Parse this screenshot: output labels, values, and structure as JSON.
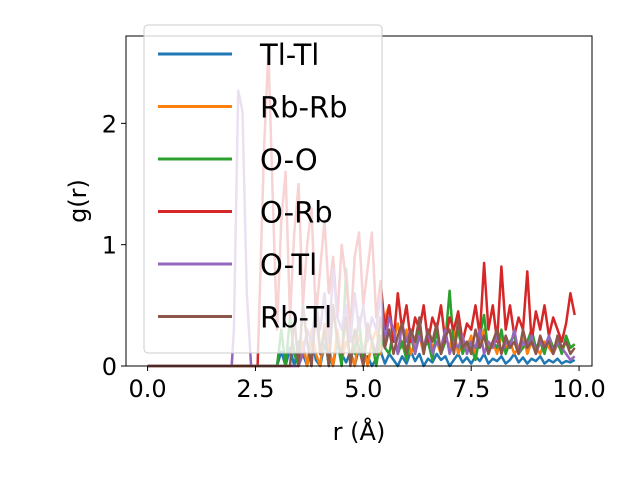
{
  "chart_data": {
    "type": "line",
    "xlabel": "r (Å)",
    "ylabel": "g(r)",
    "xlim": [
      -0.5,
      10.3
    ],
    "ylim": [
      0,
      2.72
    ],
    "xticks": [
      0.0,
      2.5,
      5.0,
      7.5,
      10.0
    ],
    "xtick_labels": [
      "0.0",
      "2.5",
      "5.0",
      "7.5",
      "10.0"
    ],
    "yticks": [
      0,
      1,
      2
    ],
    "ytick_labels": [
      "0",
      "1",
      "2"
    ],
    "grid": false,
    "legend_position": "top-left",
    "legend": [
      "Tl-Tl",
      "Rb-Rb",
      "O-O",
      "O-Rb",
      "O-Tl",
      "Rb-Tl"
    ],
    "series": [
      {
        "name": "Tl-Tl",
        "color": "#1f77b4",
        "x": [
          0,
          2.0,
          3.0,
          3.1,
          3.2,
          3.3,
          3.4,
          3.5,
          3.6,
          3.7,
          3.8,
          3.9,
          4.0,
          4.1,
          4.2,
          4.3,
          4.4,
          4.5,
          4.6,
          4.7,
          4.8,
          4.9,
          5.0,
          5.1,
          5.2,
          5.3,
          5.4,
          5.5,
          5.6,
          5.7,
          5.8,
          5.9,
          6.0,
          6.1,
          6.2,
          6.3,
          6.4,
          6.5,
          6.6,
          6.7,
          6.8,
          6.9,
          7.0,
          7.1,
          7.2,
          7.3,
          7.4,
          7.5,
          7.6,
          7.7,
          7.8,
          7.9,
          8.0,
          8.1,
          8.2,
          8.3,
          8.4,
          8.5,
          8.6,
          8.7,
          8.8,
          8.9,
          9.0,
          9.1,
          9.2,
          9.3,
          9.4,
          9.5,
          9.6,
          9.7,
          9.8,
          9.9
        ],
        "y": [
          0,
          0,
          0,
          0.12,
          0,
          0.15,
          0,
          0.2,
          0.1,
          0,
          0.25,
          0.05,
          0,
          0.18,
          0.08,
          0,
          0.22,
          0.1,
          0.03,
          0.12,
          0,
          0.15,
          0.05,
          0.08,
          0,
          0.06,
          0.12,
          0.02,
          0.1,
          0.05,
          0,
          0.08,
          0.02,
          0.12,
          0.04,
          0.1,
          0,
          0.06,
          0.03,
          0.1,
          0.05,
          0.08,
          0,
          0.05,
          0.1,
          0.03,
          0.07,
          0.02,
          0.08,
          0.04,
          0.1,
          0.02,
          0.06,
          0.04,
          0.08,
          0.02,
          0.05,
          0.1,
          0.03,
          0.07,
          0.02,
          0.06,
          0.04,
          0.08,
          0.02,
          0.05,
          0.03,
          0.06,
          0.02,
          0.04,
          0.03,
          0.05
        ]
      },
      {
        "name": "Rb-Rb",
        "color": "#ff7f0e",
        "x": [
          0,
          3.5,
          3.6,
          3.7,
          3.8,
          3.9,
          4.0,
          4.1,
          4.2,
          4.3,
          4.4,
          4.5,
          4.6,
          4.7,
          4.8,
          4.9,
          5.0,
          5.1,
          5.2,
          5.3,
          5.4,
          5.5,
          5.6,
          5.7,
          5.8,
          5.9,
          6.0,
          6.1,
          6.2,
          6.3,
          6.4,
          6.5,
          6.6,
          6.7,
          6.8,
          6.9,
          7.0,
          7.1,
          7.2,
          7.3,
          7.4,
          7.5,
          7.6,
          7.7,
          7.8,
          7.9,
          8.0,
          8.1,
          8.2,
          8.3,
          8.4,
          8.5,
          8.6,
          8.7,
          8.8,
          8.9,
          9.0,
          9.1,
          9.2,
          9.3,
          9.4,
          9.5,
          9.6,
          9.7,
          9.8,
          9.9
        ],
        "y": [
          0,
          0,
          0.2,
          0,
          0.3,
          0.1,
          0,
          0.35,
          0.15,
          0,
          0.3,
          0.05,
          0.2,
          0.1,
          0,
          0.25,
          0.15,
          0,
          0.2,
          0.3,
          0.1,
          0.4,
          0.5,
          0.2,
          0.35,
          0.15,
          0.3,
          0.1,
          0.2,
          0.25,
          0.1,
          0.3,
          0.15,
          0.2,
          0.1,
          0.25,
          0.15,
          0.3,
          0.1,
          0.2,
          0.15,
          0.25,
          0.1,
          0.2,
          0.3,
          0.15,
          0.2,
          0.1,
          0.25,
          0.15,
          0.2,
          0.1,
          0.15,
          0.25,
          0.1,
          0.2,
          0.15,
          0.1,
          0.2,
          0.15,
          0.1,
          0.18,
          0.12,
          0.2,
          0.15,
          0.18
        ]
      },
      {
        "name": "O-O",
        "color": "#2ca02c",
        "x": [
          0,
          3.0,
          3.1,
          3.2,
          3.3,
          3.4,
          3.5,
          3.6,
          3.7,
          3.8,
          3.9,
          4.0,
          4.1,
          4.2,
          4.3,
          4.4,
          4.5,
          4.6,
          4.7,
          4.8,
          4.9,
          5.0,
          5.1,
          5.2,
          5.3,
          5.4,
          5.5,
          5.6,
          5.7,
          5.8,
          5.9,
          6.0,
          6.1,
          6.2,
          6.3,
          6.4,
          6.5,
          6.6,
          6.7,
          6.8,
          6.9,
          7.0,
          7.1,
          7.2,
          7.3,
          7.4,
          7.5,
          7.6,
          7.7,
          7.8,
          7.9,
          8.0,
          8.1,
          8.2,
          8.3,
          8.4,
          8.5,
          8.6,
          8.7,
          8.8,
          8.9,
          9.0,
          9.1,
          9.2,
          9.3,
          9.4,
          9.5,
          9.6,
          9.7,
          9.8,
          9.9
        ],
        "y": [
          0,
          0,
          0.3,
          0,
          0.4,
          0.1,
          0,
          0.5,
          0.2,
          0,
          0.6,
          0.1,
          0.3,
          0,
          0.5,
          0.2,
          0,
          0.8,
          0.3,
          0.1,
          0.4,
          0,
          0.3,
          0.2,
          0,
          0.25,
          0.15,
          0.1,
          0.3,
          0.1,
          0.2,
          0.05,
          0.25,
          0.1,
          0.3,
          0.15,
          0.2,
          0.05,
          0.3,
          0.1,
          0.2,
          0.62,
          0.15,
          0.3,
          0.1,
          0.2,
          0.15,
          0.05,
          0.25,
          0.42,
          0.1,
          0.2,
          0.15,
          0.3,
          0.1,
          0.2,
          0.25,
          0.1,
          0.15,
          0.2,
          0.3,
          0.15,
          0.2,
          0.1,
          0.25,
          0.15,
          0.2,
          0.1,
          0.25,
          0.15,
          0.18
        ]
      },
      {
        "name": "O-Rb",
        "color": "#d62728",
        "x": [
          0,
          2.55,
          2.6,
          2.7,
          2.8,
          2.9,
          3.0,
          3.1,
          3.2,
          3.3,
          3.4,
          3.5,
          3.6,
          3.7,
          3.8,
          3.9,
          4.0,
          4.1,
          4.2,
          4.3,
          4.4,
          4.5,
          4.6,
          4.7,
          4.8,
          4.9,
          5.0,
          5.1,
          5.2,
          5.3,
          5.4,
          5.5,
          5.6,
          5.7,
          5.8,
          5.9,
          6.0,
          6.1,
          6.2,
          6.3,
          6.4,
          6.5,
          6.6,
          6.7,
          6.8,
          6.9,
          7.0,
          7.1,
          7.2,
          7.3,
          7.4,
          7.5,
          7.6,
          7.7,
          7.8,
          7.9,
          8.0,
          8.1,
          8.2,
          8.3,
          8.4,
          8.5,
          8.6,
          8.7,
          8.8,
          8.9,
          9.0,
          9.1,
          9.2,
          9.3,
          9.4,
          9.5,
          9.6,
          9.7,
          9.8,
          9.9
        ],
        "y": [
          0,
          0,
          0.6,
          1.8,
          2.6,
          1.4,
          0.3,
          1.2,
          1.6,
          0.4,
          1.1,
          1.5,
          0.5,
          1.0,
          1.3,
          0.4,
          0.8,
          1.2,
          0.6,
          0.9,
          0.4,
          1.0,
          0.7,
          0.3,
          0.9,
          1.1,
          0.5,
          0.8,
          1.1,
          0.4,
          0.7,
          0.3,
          0.5,
          0.2,
          0.6,
          0.3,
          0.5,
          0.2,
          0.4,
          0.3,
          0.5,
          0.2,
          0.4,
          0.3,
          0.5,
          0.2,
          0.4,
          0.3,
          0.45,
          0.2,
          0.35,
          0.3,
          0.5,
          0.25,
          0.85,
          0.3,
          0.5,
          0.2,
          0.82,
          0.3,
          0.5,
          0.25,
          0.4,
          0.3,
          0.78,
          0.2,
          0.45,
          0.3,
          0.5,
          0.25,
          0.4,
          0.3,
          0.2,
          0.35,
          0.6,
          0.42
        ]
      },
      {
        "name": "O-Tl",
        "color": "#9467bd",
        "x": [
          0,
          1.95,
          2.0,
          2.1,
          2.2,
          2.3,
          2.4,
          2.5,
          2.6,
          2.7,
          2.8,
          2.9,
          3.0,
          3.1,
          3.2,
          3.3,
          3.4,
          3.5,
          3.6,
          3.7,
          3.8,
          3.9,
          4.0,
          4.1,
          4.2,
          4.3,
          4.4,
          4.5,
          4.6,
          4.7,
          4.8,
          4.9,
          5.0,
          5.1,
          5.2,
          5.3,
          5.4,
          5.5,
          5.6,
          5.7,
          5.8,
          5.9,
          6.0,
          6.1,
          6.2,
          6.3,
          6.4,
          6.5,
          6.6,
          6.7,
          6.8,
          6.9,
          7.0,
          7.1,
          7.2,
          7.3,
          7.4,
          7.5,
          7.6,
          7.7,
          7.8,
          7.9,
          8.0,
          8.1,
          8.2,
          8.3,
          8.4,
          8.5,
          8.6,
          8.7,
          8.8,
          8.9,
          9.0,
          9.1,
          9.2,
          9.3,
          9.4,
          9.5,
          9.6,
          9.7,
          9.8,
          9.9
        ],
        "y": [
          0,
          0,
          0.3,
          2.27,
          2.1,
          0.6,
          0,
          0,
          0,
          0,
          0,
          0,
          0,
          0,
          0,
          0,
          0,
          0,
          0.1,
          0.3,
          0.2,
          0.5,
          0.3,
          0.6,
          0.2,
          0.8,
          0.4,
          0.3,
          0.5,
          0.2,
          0.6,
          0.3,
          0.5,
          0.2,
          0.4,
          0.3,
          0.6,
          0.2,
          0.4,
          0.3,
          0.1,
          0.35,
          0.2,
          0.3,
          0.1,
          0.25,
          0.15,
          0.3,
          0.1,
          0.2,
          0.15,
          0.3,
          0.1,
          0.2,
          0.15,
          0.25,
          0.1,
          0.2,
          0.15,
          0.3,
          0.1,
          0.2,
          0.15,
          0.25,
          0.1,
          0.2,
          0.15,
          0.3,
          0.1,
          0.2,
          0.15,
          0.25,
          0.1,
          0.2,
          0.15,
          0.25,
          0.1,
          0.2,
          0.15,
          0.1,
          0.05,
          0.08
        ]
      },
      {
        "name": "Rb-Tl",
        "color": "#8c564b",
        "x": [
          0,
          3.3,
          3.4,
          3.5,
          3.6,
          3.7,
          3.8,
          3.9,
          4.0,
          4.1,
          4.2,
          4.3,
          4.4,
          4.5,
          4.6,
          4.7,
          4.8,
          4.9,
          5.0,
          5.1,
          5.2,
          5.3,
          5.4,
          5.5,
          5.6,
          5.7,
          5.8,
          5.9,
          6.0,
          6.1,
          6.2,
          6.3,
          6.4,
          6.5,
          6.6,
          6.7,
          6.8,
          6.9,
          7.0,
          7.1,
          7.2,
          7.3,
          7.4,
          7.5,
          7.6,
          7.7,
          7.8,
          7.9,
          8.0,
          8.1,
          8.2,
          8.3,
          8.4,
          8.5,
          8.6,
          8.7,
          8.8,
          8.9,
          9.0,
          9.1,
          9.2,
          9.3,
          9.4,
          9.5,
          9.6,
          9.7,
          9.8,
          9.9
        ],
        "y": [
          0,
          0,
          0.4,
          0,
          0.5,
          0.2,
          0,
          0.45,
          0.1,
          0.3,
          0,
          0.5,
          0.2,
          0.1,
          0.4,
          0,
          0.3,
          0.15,
          0,
          0.35,
          0.2,
          0.1,
          0.4,
          0.15,
          0.3,
          0.1,
          0.25,
          0.35,
          0.1,
          0.3,
          0.2,
          0.4,
          0.1,
          0.3,
          0.2,
          0.35,
          0.1,
          0.25,
          0.3,
          0.1,
          0.38,
          0.15,
          0.2,
          0.1,
          0.3,
          0.15,
          0.25,
          0.1,
          0.2,
          0.3,
          0.1,
          0.25,
          0.15,
          0.2,
          0.1,
          0.3,
          0.15,
          0.2,
          0.1,
          0.25,
          0.15,
          0.2,
          0.1,
          0.25,
          0.15,
          0.2,
          0.1,
          0.15
        ]
      }
    ]
  }
}
